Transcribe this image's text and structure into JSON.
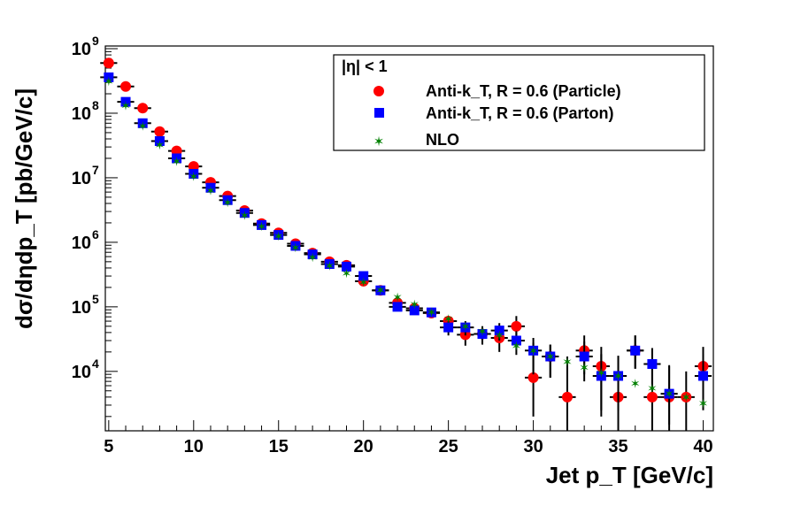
{
  "chart_data": {
    "type": "scatter",
    "xlabel": "Jet p_T [GeV/c]",
    "ylabel": "dσ/dηdp_T [pb/GeV/c]",
    "xlim": [
      4.8,
      40.6
    ],
    "ylim": [
      1200,
      1100000000
    ],
    "yscale": "log",
    "x_ticks": [
      5,
      10,
      15,
      20,
      25,
      30,
      35,
      40
    ],
    "y_ticks": [
      {
        "value": 10000,
        "label": "10",
        "exp": "4"
      },
      {
        "value": 100000,
        "label": "10",
        "exp": "5"
      },
      {
        "value": 1000000,
        "label": "10",
        "exp": "6"
      },
      {
        "value": 10000000,
        "label": "10",
        "exp": "7"
      },
      {
        "value": 100000000,
        "label": "10",
        "exp": "8"
      },
      {
        "value": 1000000000,
        "label": "10",
        "exp": "9"
      }
    ],
    "legend": {
      "header": "|η| < 1",
      "placement": "top-right"
    },
    "series": [
      {
        "name": "Anti-k_T, R = 0.6 (Particle)",
        "marker": "circle",
        "color": "#ff0000",
        "x": [
          5,
          6,
          7,
          8,
          9,
          10,
          11,
          12,
          13,
          14,
          15,
          16,
          17,
          18,
          19,
          20,
          21,
          22,
          23,
          24,
          25,
          26,
          27,
          28,
          29,
          30,
          31,
          32,
          33,
          34,
          35,
          36,
          37,
          38,
          39,
          40
        ],
        "values": [
          600000000,
          260000000,
          120000000,
          52000000,
          26000000,
          15000000,
          8500000,
          5200000,
          3100000,
          1950000,
          1400000,
          950000,
          680000,
          500000,
          440000,
          250000,
          180000,
          115000,
          95000,
          80000,
          60000,
          37000,
          38000,
          33000,
          50000,
          8000,
          17000,
          4000,
          21000,
          12000,
          4000,
          21000,
          4000,
          4000,
          4000,
          12000
        ],
        "err_low": [
          0,
          0,
          0,
          0,
          0,
          0,
          0,
          0,
          0,
          0,
          0,
          0,
          0,
          0,
          40000,
          25000,
          18000,
          15000,
          12000,
          12000,
          12000,
          12000,
          12000,
          13000,
          22000,
          6000,
          9000,
          3000,
          12000,
          10000,
          3000,
          10000,
          3000,
          3000,
          3000,
          9000
        ],
        "err_high": [
          0,
          0,
          0,
          0,
          0,
          0,
          0,
          0,
          0,
          0,
          0,
          0,
          0,
          0,
          40000,
          25000,
          18000,
          15000,
          12000,
          12000,
          12000,
          12000,
          12000,
          13000,
          22000,
          20000,
          9000,
          13000,
          15000,
          12000,
          13000,
          15000,
          10000,
          8000,
          6000,
          12000
        ]
      },
      {
        "name": "Anti-k_T, R = 0.6 (Parton)",
        "marker": "square",
        "color": "#0000ff",
        "x": [
          5,
          6,
          7,
          8,
          9,
          10,
          11,
          12,
          13,
          14,
          15,
          16,
          17,
          18,
          19,
          20,
          21,
          22,
          23,
          24,
          25,
          26,
          27,
          28,
          29,
          30,
          31,
          32,
          33,
          34,
          35,
          36,
          37,
          38,
          39,
          40
        ],
        "values": [
          360000000,
          150000000,
          70000000,
          37000000,
          20000000,
          11500000,
          7000000,
          4500000,
          2850000,
          1850000,
          1300000,
          880000,
          650000,
          460000,
          420000,
          300000,
          180000,
          100000,
          88000,
          82000,
          48000,
          48000,
          38000,
          43000,
          30000,
          21000,
          17000,
          null,
          17000,
          8500,
          8500,
          21000,
          13000,
          4500,
          null,
          8500
        ],
        "err_low": [
          0,
          0,
          0,
          0,
          0,
          0,
          0,
          0,
          0,
          0,
          0,
          0,
          0,
          0,
          40000,
          25000,
          18000,
          15000,
          12000,
          12000,
          12000,
          12000,
          12000,
          13000,
          12000,
          12000,
          9000,
          0,
          10000,
          6000,
          6000,
          10000,
          8000,
          3000,
          0,
          6000
        ],
        "err_high": [
          0,
          0,
          0,
          0,
          0,
          0,
          0,
          0,
          0,
          0,
          0,
          0,
          0,
          0,
          40000,
          25000,
          18000,
          15000,
          12000,
          12000,
          12000,
          12000,
          12000,
          13000,
          12000,
          12000,
          9000,
          0,
          12000,
          10000,
          9000,
          15000,
          10000,
          8000,
          0,
          10000
        ]
      },
      {
        "name": "NLO",
        "marker": "star",
        "color": "#008000",
        "x": [
          5,
          6,
          7,
          8,
          9,
          10,
          11,
          12,
          13,
          14,
          15,
          16,
          17,
          18,
          19,
          20,
          21,
          22,
          23,
          24,
          25,
          26,
          27,
          28,
          29,
          30,
          31,
          32,
          33,
          34,
          35,
          36,
          37,
          38,
          39,
          40
        ],
        "values": [
          310000000,
          130000000,
          63000000,
          32000000,
          18000000,
          10500000,
          6300000,
          4100000,
          2600000,
          1750000,
          1250000,
          830000,
          580000,
          430000,
          330000,
          240000,
          180000,
          140000,
          110000,
          83000,
          65000,
          50000,
          42000,
          36000,
          25000,
          21000,
          17000,
          14000,
          11500,
          9500,
          8500,
          6500,
          5500,
          4500,
          4000,
          3200
        ]
      }
    ]
  }
}
